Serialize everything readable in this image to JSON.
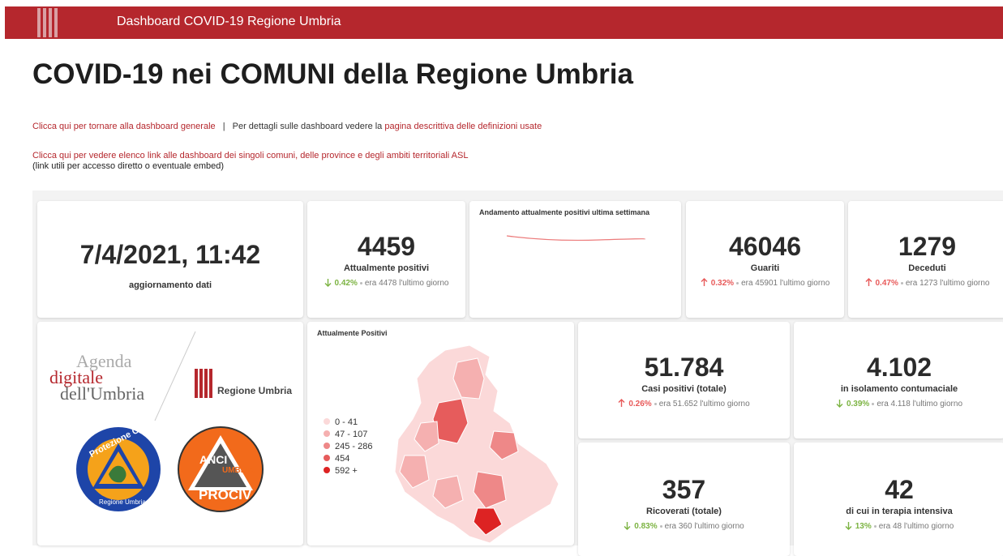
{
  "header": {
    "title": "Dashboard COVID-19 Regione Umbria"
  },
  "page_title": "COVID-19 nei COMUNI della Regione Umbria",
  "links": {
    "back": "Clicca qui per tornare alla dashboard generale",
    "separator": "|",
    "details_prefix": "Per dettagli sulle dashboard vedere la",
    "details_link": "pagina descrittiva delle definizioni usate",
    "list_link": "Clicca qui per vedere elenco link alle dashboard dei singoli comuni, delle province e degli ambiti territoriali ASL",
    "list_note": "(link utili per accesso diretto o eventuale embed)"
  },
  "update": {
    "value": "7/4/2021, 11:42",
    "label": "aggiornamento dati"
  },
  "sparkline": {
    "title": "Andamento attualmente positivi ultima settimana"
  },
  "kpis": [
    {
      "value": "4459",
      "label": "Attualmente positivi",
      "change": "0.42%",
      "direction": "down",
      "note": "era 4478 l'ultimo giorno"
    },
    {
      "value": "46046",
      "label": "Guariti",
      "change": "0.32%",
      "direction": "up",
      "note": "era 45901 l'ultimo giorno"
    },
    {
      "value": "1279",
      "label": "Deceduti",
      "change": "0.47%",
      "direction": "up",
      "note": "era 1273 l'ultimo giorno"
    },
    {
      "value": "51.784",
      "label": "Casi positivi (totale)",
      "change": "0.26%",
      "direction": "up",
      "note": "era 51.652 l'ultimo giorno"
    },
    {
      "value": "4.102",
      "label": "in isolamento contumaciale",
      "change": "0.39%",
      "direction": "down",
      "note": "era 4.118 l'ultimo giorno"
    },
    {
      "value": "357",
      "label": "Ricoverati (totale)",
      "change": "0.83%",
      "direction": "down",
      "note": "era 360 l'ultimo giorno"
    },
    {
      "value": "42",
      "label": "di cui in terapia intensiva",
      "change": "13%",
      "direction": "down",
      "note": "era 48 l'ultimo giorno"
    }
  ],
  "map": {
    "title": "Attualmente Positivi",
    "legend": [
      {
        "label": "0 - 41",
        "color": "#fbd9d9"
      },
      {
        "label": "47 - 107",
        "color": "#f5b0b0"
      },
      {
        "label": "245 - 286",
        "color": "#ee8888"
      },
      {
        "label": "454",
        "color": "#e65c5c"
      },
      {
        "label": "592 +",
        "color": "#dd2323"
      }
    ]
  },
  "logos": {
    "agenda_1": "Agenda",
    "agenda_2": "digitale",
    "agenda_3": "dell'Umbria",
    "regione": "Regione Umbria",
    "protezione": "Protezione Civile",
    "protezione_sub": "Regione Umbria",
    "anci_1": "ANCI",
    "anci_2": "UMBRIA",
    "anci_3": "PROCIV"
  }
}
